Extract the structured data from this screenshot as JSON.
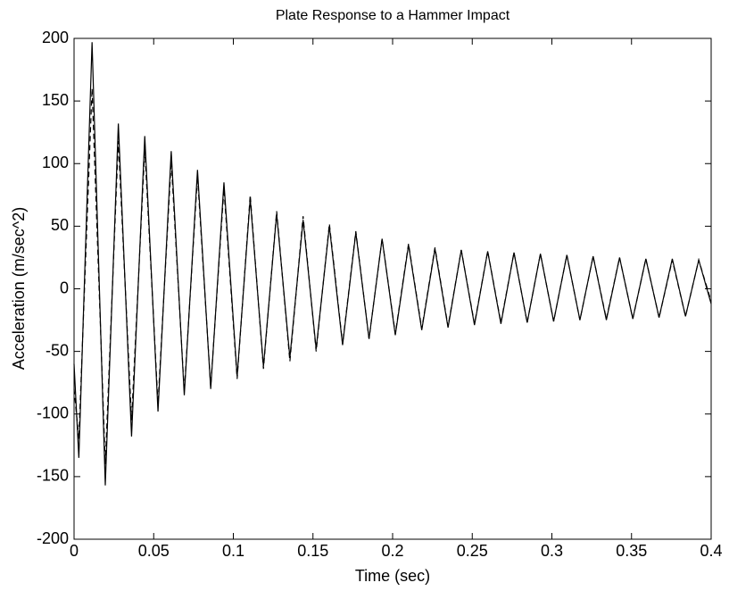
{
  "chart_data": {
    "type": "line",
    "title": "Plate Response to a Hammer Impact",
    "x_label": "Time (sec)",
    "y_label": "Acceleration (m/sec^2)",
    "x": [
      0,
      0.003,
      0.0113,
      0.0196,
      0.0278,
      0.0361,
      0.0444,
      0.0527,
      0.061,
      0.0692,
      0.0775,
      0.0858,
      0.0941,
      0.1024,
      0.1106,
      0.1189,
      0.1272,
      0.1355,
      0.1438,
      0.152,
      0.1603,
      0.1686,
      0.1769,
      0.1852,
      0.1934,
      0.2017,
      0.21,
      0.2183,
      0.2266,
      0.2348,
      0.2431,
      0.2514,
      0.2597,
      0.268,
      0.2762,
      0.2845,
      0.2928,
      0.3011,
      0.3094,
      0.3176,
      0.3259,
      0.3342,
      0.3425,
      0.3508,
      0.359,
      0.3673,
      0.3756,
      0.3839,
      0.3922,
      0.4
    ],
    "series": [
      {
        "color": "#000000",
        "dash": false,
        "values": [
          -60,
          -135,
          197,
          -157,
          132,
          -118,
          122,
          -98,
          110,
          -85,
          95,
          -80,
          85,
          -70,
          72,
          -62,
          60,
          -55,
          55,
          -48,
          50,
          -45,
          45,
          -40,
          40,
          -37,
          35,
          -33,
          32,
          -31,
          31,
          -29,
          30,
          -28,
          29,
          -27,
          28,
          -26,
          27,
          -25,
          26,
          -25,
          25,
          -24,
          24,
          -23,
          24,
          -22,
          23,
          -12
        ]
      },
      {
        "color": "#000000",
        "dash": true,
        "values": [
          -80,
          -120,
          160,
          -140,
          118,
          -105,
          112,
          -92,
          102,
          -82,
          90,
          -78,
          80,
          -72,
          75,
          -64,
          62,
          -58,
          58,
          -50,
          52,
          -44,
          46,
          -40,
          40,
          -36,
          36,
          -32,
          33,
          -30,
          31,
          -28,
          30,
          -27,
          29,
          -27,
          28,
          -26,
          27,
          -25,
          26,
          -24,
          25,
          -24,
          24,
          -23,
          23,
          -22,
          23,
          -10
        ]
      }
    ],
    "xlim": [
      0,
      0.4
    ],
    "xticks": [
      0,
      0.05,
      0.1,
      0.15,
      0.2,
      0.25,
      0.3,
      0.35,
      0.4
    ],
    "ylim": [
      -200,
      200
    ],
    "yticks": [
      -200,
      -150,
      -100,
      -50,
      0,
      50,
      100,
      150,
      200
    ],
    "grid": false
  }
}
